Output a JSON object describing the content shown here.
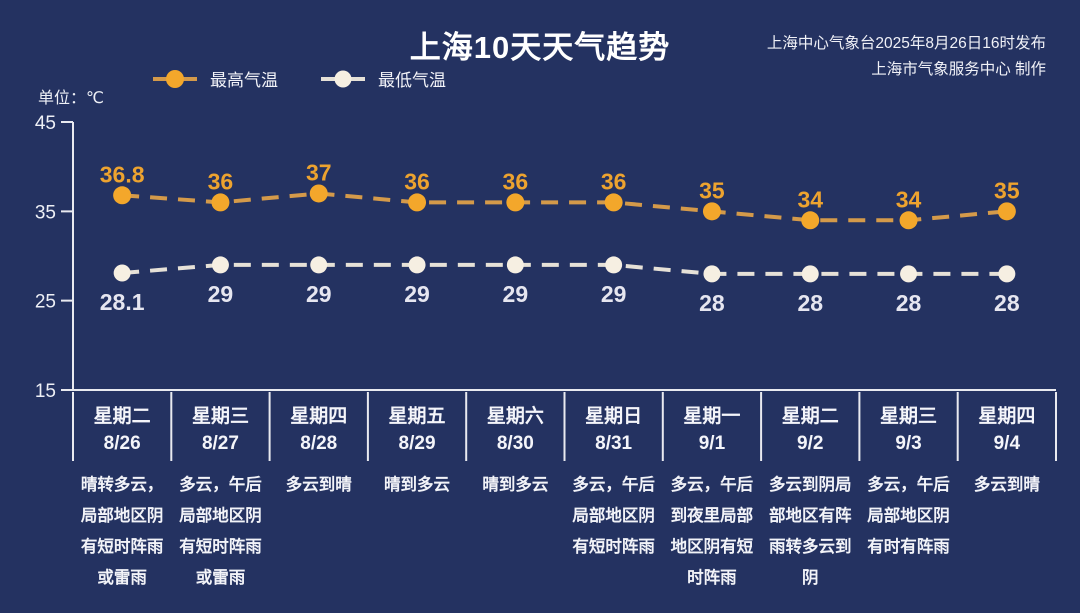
{
  "header": {
    "title": "上海10天天气趋势",
    "source_line1": "上海中心气象台2025年8月26日16时发布",
    "source_line2": "上海市气象服务中心 制作"
  },
  "unit_label": "单位：℃",
  "colors": {
    "background": "#243261",
    "axis": "#e9eaf0",
    "max_dot": "#f3a72b",
    "max_line": "#d49a4a",
    "max_label": "#eda32f",
    "min_dot": "#f6efe2",
    "min_line": "#e6e1d7",
    "min_label": "#e6e6f0",
    "text": "#f2f3f8"
  },
  "chart_data": {
    "type": "line",
    "title": "上海10天天气趋势",
    "ylabel": "单位：℃",
    "ylim": [
      15,
      45
    ],
    "yticks": [
      45,
      35,
      25,
      15
    ],
    "grid": false,
    "line_style": "dashed",
    "legend_position": "top-left",
    "categories": [
      "8/26",
      "8/27",
      "8/28",
      "8/29",
      "8/30",
      "8/31",
      "9/1",
      "9/2",
      "9/3",
      "9/4"
    ],
    "series": [
      {
        "name": "最高气温",
        "values": [
          36.8,
          36,
          37,
          36,
          36,
          36,
          35,
          34,
          34,
          35
        ],
        "dot_color": "#f3a72b",
        "line_color": "#d49a4a",
        "label_color": "#eda32f",
        "label_position": "above"
      },
      {
        "name": "最低气温",
        "values": [
          28.1,
          29,
          29,
          29,
          29,
          29,
          28,
          28,
          28,
          28
        ],
        "dot_color": "#f6efe2",
        "line_color": "#e6e1d7",
        "label_color": "#e6e6f0",
        "label_position": "below"
      }
    ]
  },
  "days": [
    {
      "weekday": "星期二",
      "date": "8/26",
      "weather": "晴转多云，局部地区阴有短时阵雨或雷雨"
    },
    {
      "weekday": "星期三",
      "date": "8/27",
      "weather": "多云，午后局部地区阴有短时阵雨或雷雨"
    },
    {
      "weekday": "星期四",
      "date": "8/28",
      "weather": "多云到晴"
    },
    {
      "weekday": "星期五",
      "date": "8/29",
      "weather": "晴到多云"
    },
    {
      "weekday": "星期六",
      "date": "8/30",
      "weather": "晴到多云"
    },
    {
      "weekday": "星期日",
      "date": "8/31",
      "weather": "多云，午后局部地区阴有短时阵雨"
    },
    {
      "weekday": "星期一",
      "date": "9/1",
      "weather": "多云，午后到夜里局部地区阴有短时阵雨"
    },
    {
      "weekday": "星期二",
      "date": "9/2",
      "weather": "多云到阴局部地区有阵雨转多云到阴"
    },
    {
      "weekday": "星期三",
      "date": "9/3",
      "weather": "多云，午后局部地区阴有时有阵雨"
    },
    {
      "weekday": "星期四",
      "date": "9/4",
      "weather": "多云到晴"
    }
  ]
}
